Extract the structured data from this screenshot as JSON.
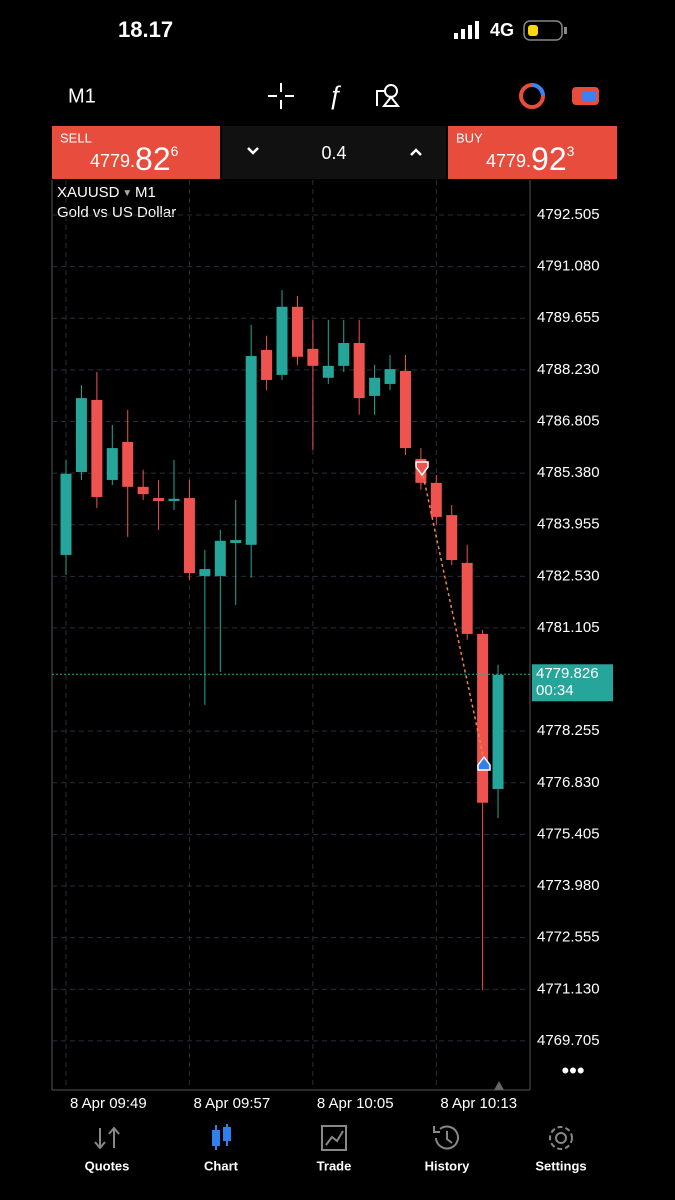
{
  "status_bar": {
    "time": "18.17",
    "network": "4G"
  },
  "toolbar": {
    "timeframe": "M1"
  },
  "trade_panel": {
    "sell": {
      "label": "SELL",
      "price_main": "4779.",
      "price_big": "82",
      "price_sup": "6"
    },
    "volume": "0.4",
    "buy": {
      "label": "BUY",
      "price_main": "4779.",
      "price_big": "92",
      "price_sup": "3"
    }
  },
  "symbol": {
    "name": "XAUUSD",
    "timeframe": "M1",
    "description": "Gold vs US Dollar"
  },
  "chart_data": {
    "type": "candlestick",
    "categories": [
      "8 Apr 09:49",
      null,
      null,
      null,
      null,
      null,
      null,
      null,
      "8 Apr 09:57",
      null,
      null,
      null,
      null,
      null,
      null,
      null,
      "8 Apr 10:05",
      null,
      null,
      null,
      null,
      null,
      null,
      null,
      "8 Apr 10:13",
      null,
      null,
      null,
      null
    ],
    "open": [
      4783.12,
      4785.41,
      4787.4,
      4785.19,
      4786.24,
      4785.0,
      4784.69,
      4784.61,
      4784.69,
      4782.54,
      4782.54,
      4783.45,
      4783.4,
      4788.78,
      4788.09,
      4789.97,
      4788.81,
      4788.01,
      4788.34,
      4788.97,
      4787.51,
      4787.84,
      4788.2,
      4785.77,
      4785.11,
      4784.22,
      4782.9,
      4780.94,
      4776.66
    ],
    "high": [
      4785.74,
      4787.81,
      4788.17,
      4786.71,
      4787.12,
      4785.47,
      4785.19,
      4785.74,
      4785.19,
      4783.26,
      4783.81,
      4784.64,
      4789.47,
      4789.17,
      4790.43,
      4790.27,
      4789.61,
      4789.61,
      4789.61,
      4789.61,
      4788.37,
      4788.64,
      4788.64,
      4786.07,
      4785.33,
      4784.5,
      4783.4,
      4781.05,
      4780.09
    ],
    "low": [
      4782.57,
      4785.19,
      4784.42,
      4785.05,
      4783.62,
      4784.64,
      4783.81,
      4784.36,
      4782.43,
      4778.98,
      4779.89,
      4781.74,
      4782.49,
      4787.67,
      4787.95,
      4788.37,
      4786.02,
      4787.84,
      4788.17,
      4786.99,
      4786.99,
      4787.67,
      4785.88,
      4784.92,
      4783.95,
      4782.84,
      4780.78,
      4771.11,
      4775.86
    ],
    "close": [
      4785.36,
      4787.45,
      4784.72,
      4786.07,
      4785.0,
      4784.8,
      4784.61,
      4784.67,
      4782.62,
      4782.73,
      4783.51,
      4783.53,
      4788.61,
      4787.95,
      4789.97,
      4788.59,
      4788.34,
      4788.34,
      4788.97,
      4787.45,
      4788.01,
      4788.25,
      4786.07,
      4785.11,
      4784.17,
      4782.98,
      4780.94,
      4776.28,
      4779.81
    ],
    "up_color": "#26a69a",
    "down_color": "#ef5350",
    "ylim": [
      4768.35,
      4793.47
    ],
    "yticks": [
      4792.505,
      {
        "value": 4791.08,
        "label": "4791.080"
      },
      4789.655,
      {
        "value": 4788.23,
        "label": "4788.230"
      },
      4786.805,
      {
        "value": 4785.38,
        "label": "4785.380"
      },
      4783.955,
      {
        "value": 4782.53,
        "label": "4782.530"
      },
      4781.105,
      4778.255,
      {
        "value": 4776.83,
        "label": "4776.830"
      },
      4775.405,
      {
        "value": 4773.98,
        "label": "4773.980"
      },
      4772.555,
      {
        "value": 4771.13,
        "label": "4771.130"
      },
      4769.705
    ],
    "grid": true,
    "last_price": 4779.826,
    "timer": "00:34"
  },
  "tabs": [
    "Quotes",
    "Chart",
    "Trade",
    "History",
    "Settings"
  ]
}
